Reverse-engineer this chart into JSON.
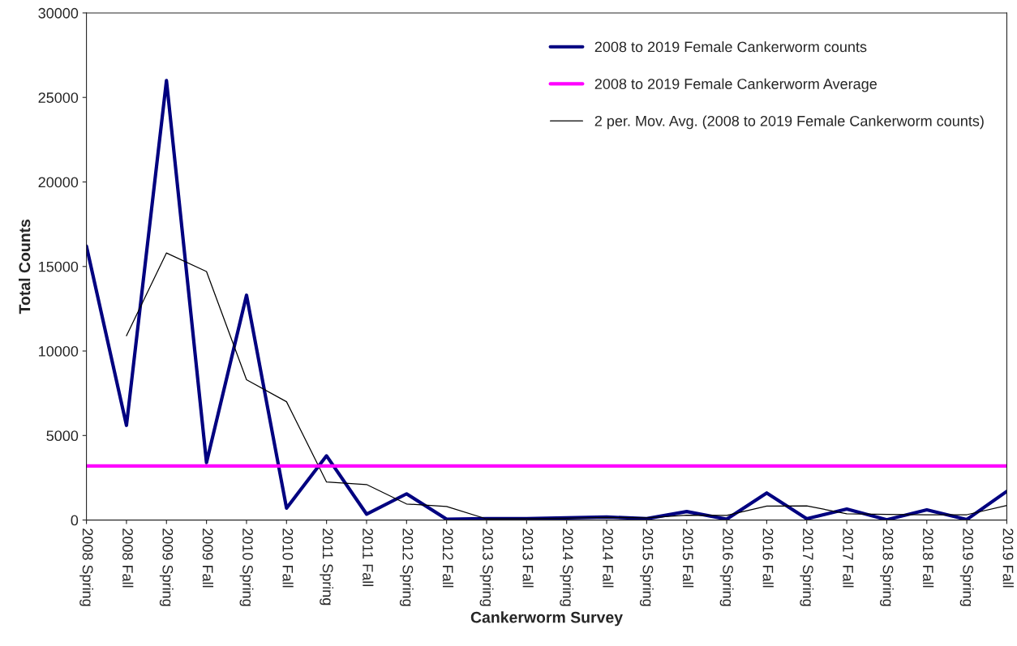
{
  "chart_data": {
    "type": "line",
    "xlabel": "Cankerworm Survey",
    "ylabel": "Total Counts",
    "categories": [
      "2008 Spring",
      "2008 Fall",
      "2009 Spring",
      "2009 Fall",
      "2010 Spring",
      "2010 Fall",
      "2011 Spring",
      "2011 Fall",
      "2012 Spring",
      "2012 Fall",
      "2013 Spring",
      "2013 Fall",
      "2014 Spring",
      "2014 Fall",
      "2015 Spring",
      "2015 Fall",
      "2016 Spring",
      "2016 Fall",
      "2017 Spring",
      "2017 Fall",
      "2018 Spring",
      "2018 Fall",
      "2019 Spring",
      "2019 Fall"
    ],
    "series": [
      {
        "name": "2008 to 2019 Female Cankerworm counts",
        "color": "#000080",
        "values": [
          16200,
          5600,
          26000,
          3400,
          13300,
          700,
          3800,
          350,
          1550,
          50,
          80,
          80,
          130,
          180,
          80,
          500,
          50,
          1600,
          80,
          650,
          20,
          600,
          30,
          1700
        ]
      },
      {
        "name": "2 per. Mov. Avg. (2008 to 2019 Female Cankerworm counts)",
        "color": "#000000",
        "values": [
          null,
          10900,
          15800,
          14700,
          8300,
          7000,
          2250,
          2100,
          950,
          800,
          65,
          80,
          105,
          155,
          130,
          290,
          275,
          825,
          840,
          365,
          335,
          310,
          315,
          865
        ]
      }
    ],
    "ref_lines": [
      {
        "axis": "y",
        "value": 3200,
        "label": "2008 to 2019 Female Cankerworm Average",
        "color": "#ff00ff"
      }
    ],
    "ylim": [
      0,
      30000
    ],
    "yticks": [
      0,
      5000,
      10000,
      15000,
      20000,
      25000,
      30000
    ],
    "grid": false,
    "legend": "top right"
  }
}
